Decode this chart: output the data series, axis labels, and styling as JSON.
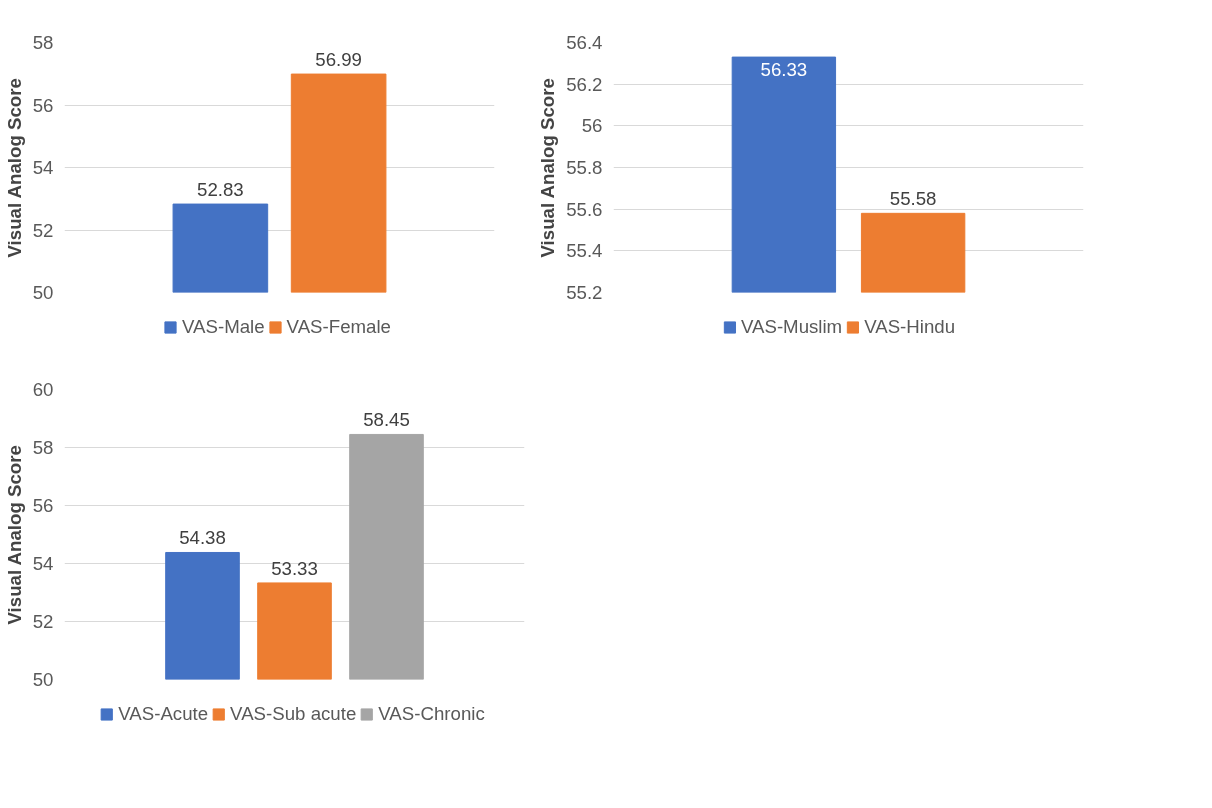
{
  "chart_data": [
    {
      "type": "bar",
      "ylabel": "Visual Analog Score",
      "categories": [
        null
      ],
      "series": [
        {
          "name": "VAS-Male",
          "color": "#4472c4",
          "values": [
            52.83
          ]
        },
        {
          "name": "VAS-Female",
          "color": "#ed7d31",
          "values": [
            56.99
          ]
        }
      ],
      "ylim": [
        50,
        58
      ],
      "yticks": [
        50,
        52,
        54,
        56,
        58
      ],
      "grid": "y",
      "legend": "bottom",
      "data_labels": true
    },
    {
      "type": "bar",
      "ylabel": "Visual Analog Score",
      "categories": [
        null
      ],
      "series": [
        {
          "name": "VAS-Muslim",
          "color": "#4472c4",
          "values": [
            56.33
          ]
        },
        {
          "name": "VAS-Hindu",
          "color": "#ed7d31",
          "values": [
            55.58
          ]
        }
      ],
      "ylim": [
        55.2,
        56.4
      ],
      "yticks": [
        55.2,
        55.4,
        55.6,
        55.8,
        56,
        56.2,
        56.4
      ],
      "grid": "y",
      "legend": "bottom",
      "data_labels": true
    },
    {
      "type": "bar",
      "ylabel": "Visual Analog Score",
      "categories": [
        null
      ],
      "series": [
        {
          "name": "VAS-Acute",
          "color": "#4472c4",
          "values": [
            54.38
          ]
        },
        {
          "name": "VAS-Sub acute",
          "color": "#ed7d31",
          "values": [
            53.33
          ]
        },
        {
          "name": "VAS-Chronic",
          "color": "#a5a5a5",
          "values": [
            58.45
          ]
        }
      ],
      "ylim": [
        50,
        60
      ],
      "yticks": [
        50,
        52,
        54,
        56,
        58,
        60
      ],
      "grid": "y",
      "legend": "bottom",
      "data_labels": true
    }
  ]
}
